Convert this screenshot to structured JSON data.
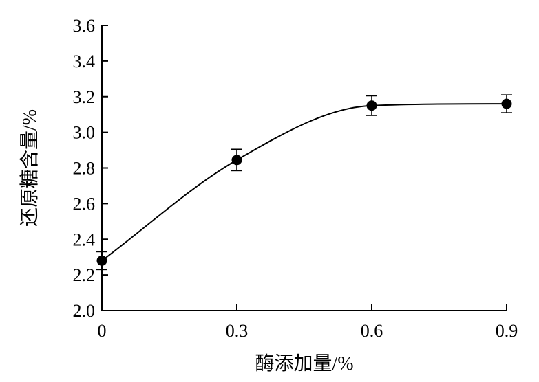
{
  "chart_data": {
    "type": "line",
    "xlabel": "酶添加量/%",
    "ylabel": "还原糖含量/%",
    "xlim": [
      0,
      0.9
    ],
    "ylim": [
      2.0,
      3.6
    ],
    "xticks": [
      0,
      0.3,
      0.6,
      0.9
    ],
    "xtick_labels": [
      "0",
      "0.3",
      "0.6",
      "0.9"
    ],
    "yticks": [
      2.0,
      2.2,
      2.4,
      2.6,
      2.8,
      3.0,
      3.2,
      3.4,
      3.6
    ],
    "ytick_labels": [
      "2.0",
      "2.2",
      "2.4",
      "2.6",
      "2.8",
      "3.0",
      "3.2",
      "3.4",
      "3.6"
    ],
    "grid": false,
    "series": [
      {
        "x": [
          0,
          0.3,
          0.6,
          0.9
        ],
        "y": [
          2.28,
          2.845,
          3.15,
          3.16
        ],
        "error": [
          0.05,
          0.06,
          0.055,
          0.05
        ],
        "smooth": true,
        "marker": "circle",
        "color": "#000000"
      }
    ]
  }
}
